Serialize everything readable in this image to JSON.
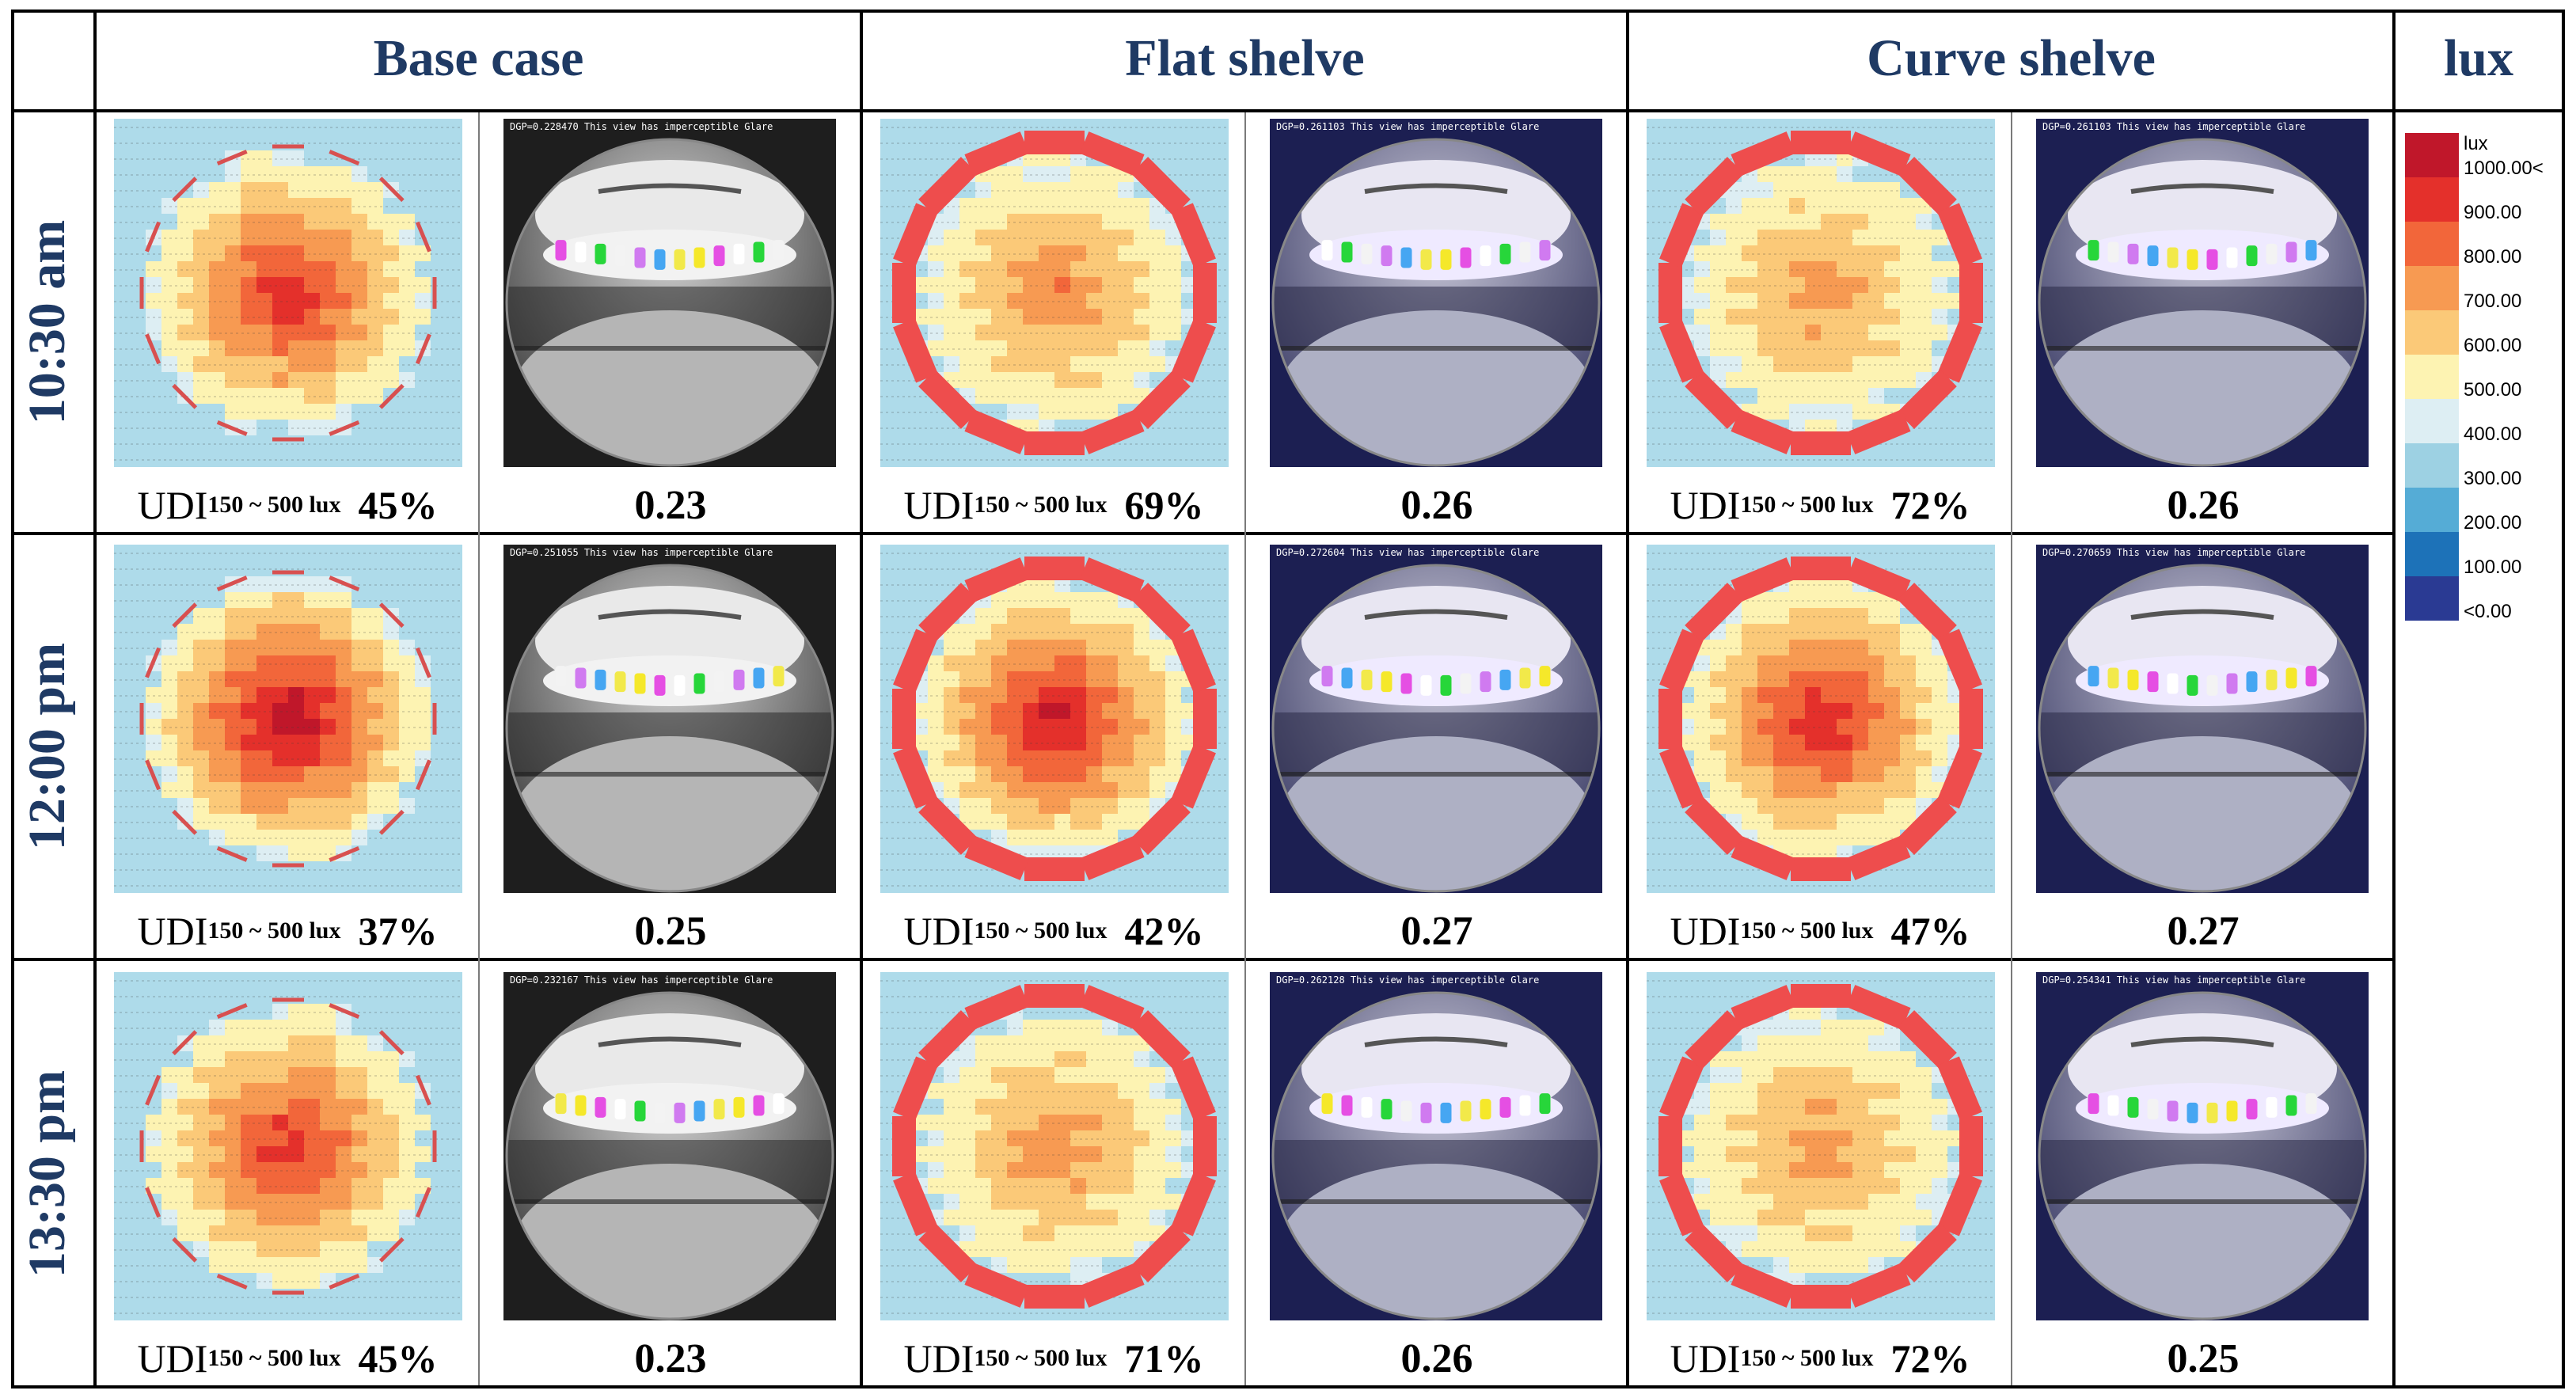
{
  "headers": {
    "base_case": "Base case",
    "flat_shelve": "Flat shelve",
    "curve_shelve": "Curve shelve",
    "lux": "lux"
  },
  "rows": [
    {
      "time": "10:30 am",
      "cells": [
        {
          "udi": "45%",
          "dgp": "0.23",
          "glare_caption": "DGP=0.228470 This view has imperceptible Glare",
          "intensity": 0.85
        },
        {
          "udi": "69%",
          "dgp": "0.26",
          "glare_caption": "DGP=0.261103 This view has imperceptible Glare",
          "intensity": 0.55
        },
        {
          "udi": "72%",
          "dgp": "0.26",
          "glare_caption": "DGP=0.261103 This view has imperceptible Glare",
          "intensity": 0.5
        }
      ]
    },
    {
      "time": "12:00 pm",
      "cells": [
        {
          "udi": "37%",
          "dgp": "0.25",
          "glare_caption": "DGP=0.251055 This view has imperceptible Glare",
          "intensity": 1.0
        },
        {
          "udi": "42%",
          "dgp": "0.27",
          "glare_caption": "DGP=0.272604 This view has imperceptible Glare",
          "intensity": 0.92
        },
        {
          "udi": "47%",
          "dgp": "0.27",
          "glare_caption": "DGP=0.270659 This view has imperceptible Glare",
          "intensity": 0.88
        }
      ]
    },
    {
      "time": "13:30 pm",
      "cells": [
        {
          "udi": "45%",
          "dgp": "0.23",
          "glare_caption": "DGP=0.232167 This view has imperceptible Glare",
          "intensity": 0.82
        },
        {
          "udi": "71%",
          "dgp": "0.26",
          "glare_caption": "DGP=0.262128 This view has imperceptible Glare",
          "intensity": 0.52
        },
        {
          "udi": "72%",
          "dgp": "0.25",
          "glare_caption": "DGP=0.254341 This view has imperceptible Glare",
          "intensity": 0.5
        }
      ]
    }
  ],
  "udi_label": {
    "prefix": "UDI",
    "subscript": "150 ~ 500 lux"
  },
  "legend": {
    "title": "lux",
    "labels": [
      "1000.00<",
      "900.00",
      "800.00",
      "700.00",
      "600.00",
      "500.00",
      "400.00",
      "300.00",
      "200.00",
      "100.00",
      "<0.00"
    ],
    "colors": [
      "#c0172a",
      "#e4302b",
      "#f2663a",
      "#f79a52",
      "#fbc978",
      "#fdf3b2",
      "#ddeef3",
      "#9dd1e3",
      "#55acd6",
      "#1d72b8",
      "#2a3a93"
    ]
  }
}
